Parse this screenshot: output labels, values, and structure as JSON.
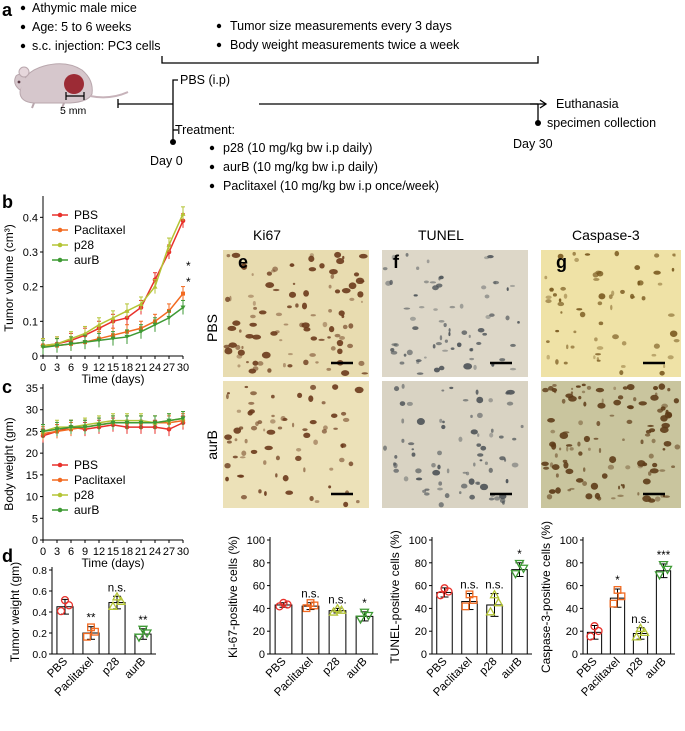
{
  "panel_a": {
    "letter": "a",
    "bullets_left": [
      "Athymic male mice",
      "Age: 5 to 6 weeks",
      "s.c. injection: PC3 cells"
    ],
    "bullets_right": [
      "Tumor size measurements every 3 days",
      "Body weight measurements twice a week"
    ],
    "scale_label": "5 mm",
    "pbs_label": "PBS (i.p)",
    "treatment_label": "Treatment:",
    "treatments": [
      "p28 (10 mg/kg bw i.p daily)",
      "aurB (10 mg/kg bw i.p daily)",
      "Paclitaxel (10 mg/kg bw i.p once/week)"
    ],
    "day0": "Day 0",
    "day30": "Day 30",
    "end_lines": [
      "Euthanasia",
      "specimen collection"
    ]
  },
  "panel_b": {
    "letter": "b",
    "chart_data": {
      "type": "line",
      "ylabel": "Tumor volume (cm³)",
      "xlabel": "Time (days)",
      "x": [
        0,
        3,
        6,
        9,
        12,
        15,
        18,
        21,
        24,
        27,
        30
      ],
      "xlim": [
        0,
        30
      ],
      "ylim": [
        0,
        0.45
      ],
      "y_ticks": [
        "0",
        "0.1",
        "0.2",
        "0.3",
        "0.4"
      ],
      "x_ticks": [
        "0",
        "3",
        "6",
        "9",
        "12",
        "15",
        "18",
        "21",
        "24",
        "27",
        "30"
      ],
      "series": [
        {
          "name": "PBS",
          "color": "#e8312b",
          "values": [
            0.03,
            0.035,
            0.045,
            0.06,
            0.08,
            0.1,
            0.11,
            0.14,
            0.22,
            0.3,
            0.39
          ]
        },
        {
          "name": "Paclitaxel",
          "color": "#f26a21",
          "values": [
            0.03,
            0.03,
            0.035,
            0.04,
            0.05,
            0.06,
            0.07,
            0.08,
            0.1,
            0.13,
            0.18
          ]
        },
        {
          "name": "p28",
          "color": "#b4c435",
          "values": [
            0.03,
            0.035,
            0.05,
            0.065,
            0.09,
            0.11,
            0.13,
            0.15,
            0.2,
            0.32,
            0.41
          ]
        },
        {
          "name": "aurB",
          "color": "#3e9a34",
          "values": [
            0.025,
            0.03,
            0.035,
            0.04,
            0.045,
            0.05,
            0.055,
            0.07,
            0.09,
            0.11,
            0.14
          ]
        }
      ],
      "annotations": [
        "*",
        "*"
      ],
      "legend_position": "top-left"
    }
  },
  "panel_c": {
    "letter": "c",
    "chart_data": {
      "type": "line",
      "ylabel": "Body weight (gm)",
      "xlabel": "Time (days)",
      "x": [
        0,
        3,
        6,
        9,
        12,
        15,
        18,
        21,
        24,
        27,
        30
      ],
      "xlim": [
        0,
        30
      ],
      "ylim": [
        0,
        35
      ],
      "y_ticks": [
        "0",
        "5",
        "10",
        "15",
        "20",
        "25",
        "30",
        "35"
      ],
      "x_ticks": [
        "0",
        "3",
        "6",
        "9",
        "12",
        "15",
        "18",
        "21",
        "24",
        "27",
        "30"
      ],
      "series": [
        {
          "name": "PBS",
          "color": "#e8312b",
          "values": [
            24,
            25,
            26,
            25.5,
            26,
            26.5,
            26,
            26,
            26,
            25.5,
            27
          ]
        },
        {
          "name": "Paclitaxel",
          "color": "#f26a21",
          "values": [
            24.5,
            25,
            25.5,
            26,
            26.5,
            27,
            27,
            27,
            27,
            27,
            27.5
          ]
        },
        {
          "name": "p28",
          "color": "#b4c435",
          "values": [
            25,
            26,
            26,
            26.5,
            27,
            27.5,
            27.5,
            27.5,
            27,
            27.5,
            28
          ]
        },
        {
          "name": "aurB",
          "color": "#3e9a34",
          "values": [
            25,
            25.5,
            26,
            26,
            26.5,
            27,
            27,
            27,
            27,
            27.5,
            28
          ]
        }
      ],
      "legend_position": "bottom-left"
    }
  },
  "panel_d": {
    "letter": "d",
    "chart_data": {
      "type": "bar",
      "ylabel": "Tumor weight (gm)",
      "categories": [
        "PBS",
        "Paclitaxel",
        "p28",
        "aurB"
      ],
      "values": [
        0.45,
        0.2,
        0.49,
        0.19
      ],
      "errors": [
        0.07,
        0.06,
        0.06,
        0.05
      ],
      "colors": [
        "#e8312b",
        "#f26a21",
        "#b4c435",
        "#3e9a34"
      ],
      "ylim": [
        0,
        0.8
      ],
      "y_ticks": [
        "0.0",
        "0.2",
        "0.4",
        "0.6",
        "0.8"
      ],
      "significance": [
        "",
        "**",
        "n.s.",
        "**"
      ]
    }
  },
  "micrographs": {
    "letters": [
      "e",
      "f",
      "g"
    ],
    "columns": [
      "Ki67",
      "TUNEL",
      "Caspase-3"
    ],
    "rows": [
      "PBS",
      "aurB"
    ]
  },
  "bar_panels": [
    {
      "chart_data": {
        "type": "bar",
        "ylabel": "Ki-67-positive cells (%)",
        "categories": [
          "PBS",
          "Paclitaxel",
          "p28",
          "aurB"
        ],
        "values": [
          43,
          42,
          38,
          33
        ],
        "errors": [
          2,
          3,
          2,
          4
        ],
        "colors": [
          "#e8312b",
          "#f26a21",
          "#b4c435",
          "#3e9a34"
        ],
        "ylim": [
          0,
          100
        ],
        "y_ticks": [
          "0",
          "20",
          "40",
          "60",
          "80",
          "100"
        ],
        "significance": [
          "",
          "n.s.",
          "n.s.",
          "*"
        ]
      }
    },
    {
      "chart_data": {
        "type": "bar",
        "ylabel": "TUNEL-positive cells (%)",
        "categories": [
          "PBS",
          "Paclitaxel",
          "p28",
          "aurB"
        ],
        "values": [
          54,
          46,
          43,
          74
        ],
        "errors": [
          4,
          7,
          10,
          6
        ],
        "colors": [
          "#e8312b",
          "#f26a21",
          "#b4c435",
          "#3e9a34"
        ],
        "ylim": [
          0,
          100
        ],
        "y_ticks": [
          "0",
          "20",
          "40",
          "60",
          "80",
          "100"
        ],
        "significance": [
          "",
          "n.s.",
          "n.s.",
          "*"
        ]
      }
    },
    {
      "chart_data": {
        "type": "bar",
        "ylabel": "Caspase-3-positive cells (%)",
        "categories": [
          "PBS",
          "Paclitaxel",
          "p28",
          "aurB"
        ],
        "values": [
          19,
          49,
          18,
          73
        ],
        "errors": [
          6,
          8,
          5,
          6
        ],
        "colors": [
          "#e8312b",
          "#f26a21",
          "#b4c435",
          "#3e9a34"
        ],
        "ylim": [
          0,
          100
        ],
        "y_ticks": [
          "0",
          "20",
          "40",
          "60",
          "80",
          "100"
        ],
        "significance": [
          "",
          "*",
          "n.s.",
          "***"
        ]
      }
    }
  ]
}
